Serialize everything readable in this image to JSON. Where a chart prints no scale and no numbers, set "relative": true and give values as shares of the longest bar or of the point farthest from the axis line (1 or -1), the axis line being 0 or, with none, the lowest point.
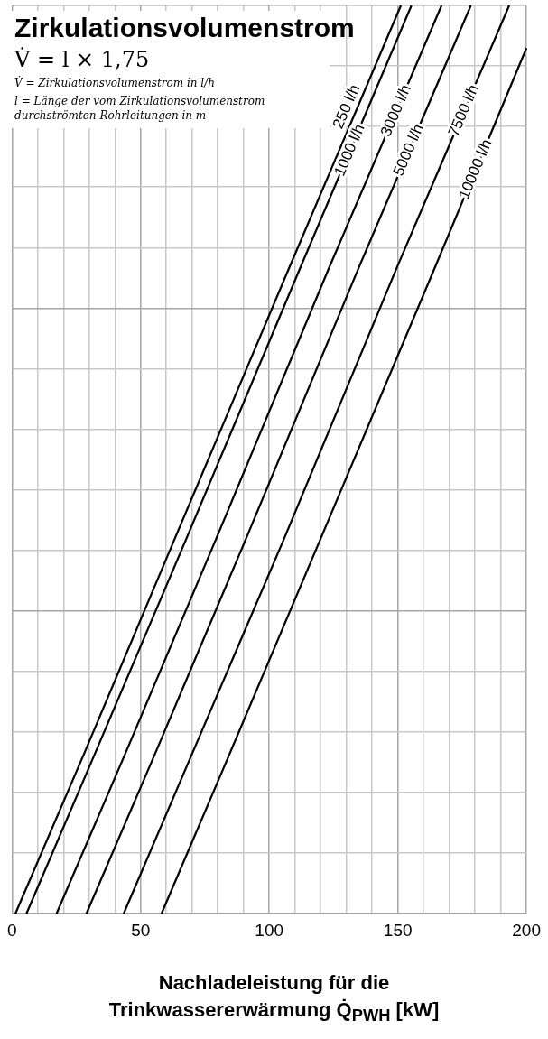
{
  "chart_data": {
    "type": "line",
    "title": "Zirkulationsvolumenstrom",
    "xlabel": "Nachladeleistung für die Trinkwassererwärmung Q̇$_{PWH}$  [kW]",
    "annotations": [
      "V̇ = l × 1,75",
      "V̇ = Zirkulationsvolumenstrom in l/h",
      "l = Länge der vom Zirkulationsvolumenstrom durchströmten Rohrleitungen in m"
    ],
    "relative": true,
    "grid": true,
    "legend": false,
    "marker": "none",
    "line_style": "solid",
    "xlim": [
      0,
      200
    ],
    "xticks": [
      0,
      {
        "value": 10,
        "label": null
      },
      {
        "value": 20,
        "label": null
      },
      {
        "value": 30,
        "label": null
      },
      {
        "value": 40,
        "label": null
      },
      50,
      {
        "value": 60,
        "label": null
      },
      {
        "value": 70,
        "label": null
      },
      {
        "value": 80,
        "label": null
      },
      {
        "value": 90,
        "label": null
      },
      100,
      {
        "value": 110,
        "label": null
      },
      {
        "value": 120,
        "label": null
      },
      {
        "value": 130,
        "label": null
      },
      {
        "value": 140,
        "label": null
      },
      150,
      {
        "value": 160,
        "label": null
      },
      {
        "value": 170,
        "label": null
      },
      {
        "value": 180,
        "label": null
      },
      {
        "value": 190,
        "label": null
      },
      200
    ],
    "series": [
      {
        "name": "250 l/h",
        "color": "#000000",
        "x": [
          1.3,
          28,
          63.3,
          107.6,
          151.2
        ],
        "values": [
          0,
          0.176,
          0.413,
          0.71,
          1
        ]
      },
      {
        "name": "1000 l/h",
        "color": "#000000",
        "x": [
          5.6,
          32.2,
          67.8,
          111.9,
          155.3
        ],
        "values": [
          0,
          0.176,
          0.413,
          0.71,
          1
        ]
      },
      {
        "name": "3000 l/h",
        "color": "#000000",
        "x": [
          17.3,
          44,
          79.4,
          123.1,
          167
        ],
        "values": [
          0,
          0.176,
          0.413,
          0.71,
          1
        ]
      },
      {
        "name": "5000 l/h",
        "color": "#000000",
        "x": [
          28.9,
          55.6,
          91,
          134.6,
          178.4
        ],
        "values": [
          0,
          0.176,
          0.413,
          0.71,
          1
        ]
      },
      {
        "name": "7500 l/h",
        "color": "#000000",
        "x": [
          43.4,
          70,
          105.8,
          149.4,
          193.3
        ],
        "values": [
          0,
          0.176,
          0.413,
          0.71,
          1
        ]
      },
      {
        "name": "10000 l/h",
        "color": "#000000",
        "x": [
          58.1,
          84.6,
          120,
          164.2,
          200
        ],
        "values": [
          0,
          0.176,
          0.413,
          0.71,
          0.953
        ]
      }
    ]
  }
}
